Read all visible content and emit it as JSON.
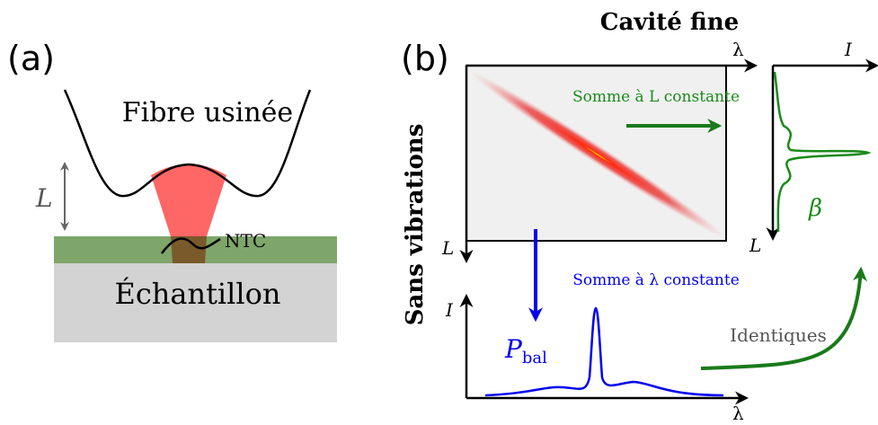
{
  "panel_a": {
    "label": "(a)",
    "fiber_label": "Fibre usinée",
    "length_label": "L",
    "ntc_label": "NTC",
    "sample_label": "Échantillon"
  },
  "panel_b": {
    "label": "(b)",
    "title": "Cavité fine",
    "side_label": "Sans vibrations",
    "map": {
      "x_axis": "λ",
      "y_axis": "L",
      "sum_label": "Somme à L constante"
    },
    "spectrum_right": {
      "axis_top": "I",
      "axis_side": "L",
      "symbol": "β"
    },
    "spectrum_bottom": {
      "sum_label": "Somme à λ constante",
      "axis_side": "I",
      "axis_bottom": "λ",
      "symbol": "P",
      "symbol_subscript": "bal"
    },
    "identical_label": "Identiques"
  }
}
